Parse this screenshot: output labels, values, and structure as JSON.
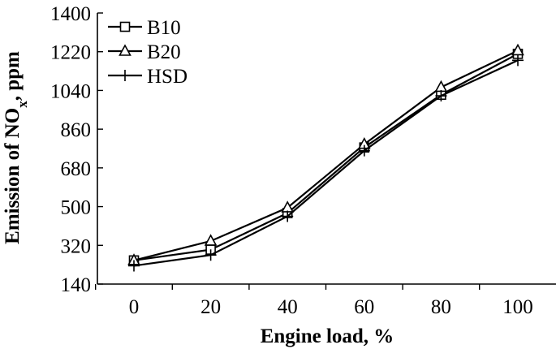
{
  "chart_data": {
    "type": "line",
    "xlabel": "Engine load, %",
    "ylabel_main": "Emission of NO",
    "ylabel_sub": "x",
    "ylabel_tail": ", ppm",
    "x": [
      0,
      20,
      40,
      60,
      80,
      100
    ],
    "x_tick_labels": [
      "0",
      "20",
      "40",
      "60",
      "80",
      "100"
    ],
    "ylim": [
      140,
      1400
    ],
    "y_ticks": [
      140,
      320,
      500,
      680,
      860,
      1040,
      1220,
      1400
    ],
    "y_tick_labels": [
      "140",
      "320",
      "500",
      "680",
      "860",
      "1040",
      "1220",
      "1400"
    ],
    "legend_position": "top-left",
    "grid": false,
    "series": [
      {
        "name": "B10",
        "marker": "square",
        "values": [
          250,
          300,
          470,
          775,
          1020,
          1210
        ]
      },
      {
        "name": "B20",
        "marker": "triangle",
        "values": [
          250,
          340,
          495,
          790,
          1055,
          1225
        ]
      },
      {
        "name": "HSD",
        "marker": "plus",
        "values": [
          225,
          275,
          455,
          760,
          1015,
          1180
        ]
      }
    ]
  }
}
